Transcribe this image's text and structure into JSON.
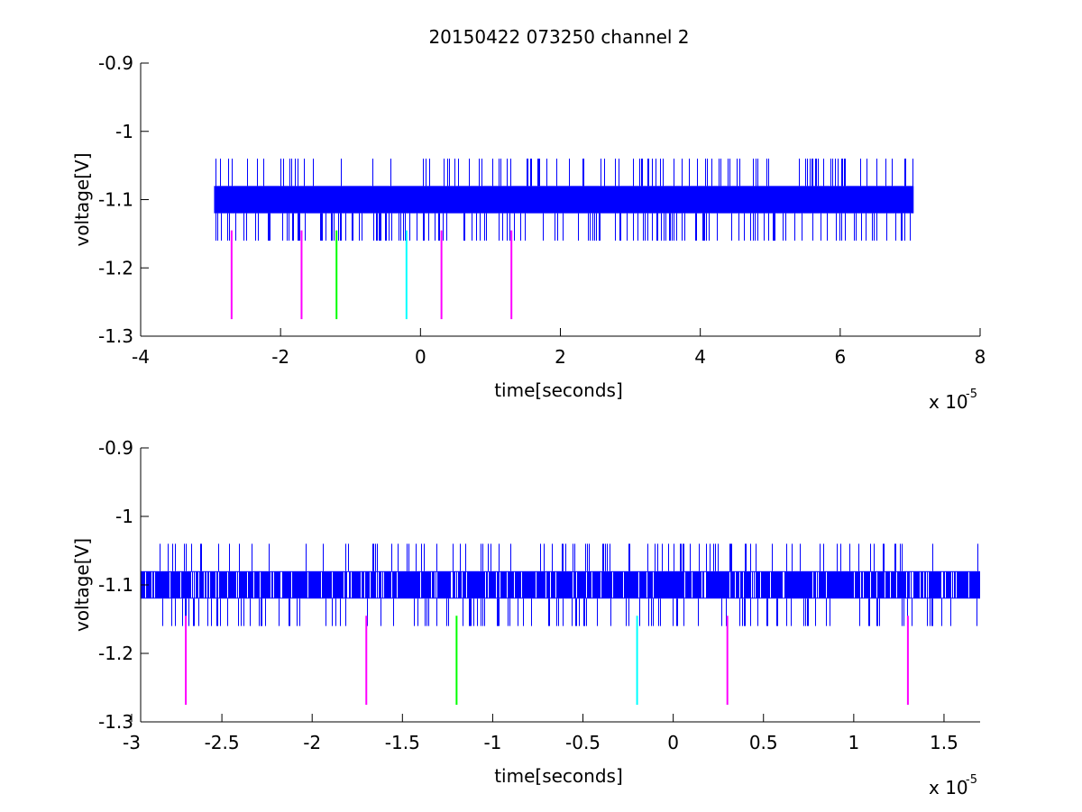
{
  "title": "20150422 073250 channel 2",
  "chart_data": [
    {
      "type": "line",
      "xlabel": "time[seconds]",
      "ylabel": "voltage[V]",
      "x_multiplier": "x 10",
      "x_exponent": "-5",
      "xlim": [
        -4,
        8
      ],
      "ylim": [
        -1.3,
        -0.9
      ],
      "xticks": [
        -4,
        -2,
        0,
        2,
        4,
        6,
        8
      ],
      "xtick_labels": [
        "-4",
        "-2",
        "0",
        "2",
        "4",
        "6",
        "8"
      ],
      "yticks": [
        -1.3,
        -1.2,
        -1.1,
        -1.0,
        -0.9
      ],
      "ytick_labels": [
        "-1.3",
        "-1.2",
        "-1.1",
        "-1",
        "-0.9"
      ],
      "grid": false,
      "signal": {
        "color": "#0000ff",
        "x_start": -2.95,
        "x_end": 7.05,
        "band_low": -1.12,
        "band_high": -1.08,
        "spike_high": -1.04,
        "spike_low": -1.16,
        "high_spike_density": 0.17,
        "low_spike_density": 0.18,
        "gap_density": 0.0
      },
      "markers": [
        {
          "x": -2.7,
          "y_top": -1.145,
          "y_bottom": -1.275,
          "color": "#ff00ff"
        },
        {
          "x": -1.7,
          "y_top": -1.145,
          "y_bottom": -1.275,
          "color": "#ff00ff"
        },
        {
          "x": -1.2,
          "y_top": -1.145,
          "y_bottom": -1.275,
          "color": "#00ff00"
        },
        {
          "x": -0.2,
          "y_top": -1.145,
          "y_bottom": -1.275,
          "color": "#00ffff"
        },
        {
          "x": 0.3,
          "y_top": -1.145,
          "y_bottom": -1.275,
          "color": "#ff00ff"
        },
        {
          "x": 1.3,
          "y_top": -1.145,
          "y_bottom": -1.275,
          "color": "#ff00ff"
        }
      ]
    },
    {
      "type": "line",
      "xlabel": "time[seconds]",
      "ylabel": "voltage[V]",
      "x_multiplier": "x 10",
      "x_exponent": "-5",
      "xlim": [
        -2.95,
        1.7
      ],
      "ylim": [
        -1.3,
        -0.9
      ],
      "xticks": [
        -3,
        -2.5,
        -2,
        -1.5,
        -1,
        -0.5,
        0,
        0.5,
        1,
        1.5
      ],
      "xtick_labels": [
        "-3",
        "-2.5",
        "-2",
        "-1.5",
        "-1",
        "-0.5",
        "0",
        "0.5",
        "1",
        "1.5"
      ],
      "yticks": [
        -1.3,
        -1.2,
        -1.1,
        -1.0,
        -0.9
      ],
      "ytick_labels": [
        "-1.3",
        "-1.2",
        "-1.1",
        "-1",
        "-0.9"
      ],
      "grid": false,
      "signal": {
        "color": "#0000ff",
        "x_start": -2.95,
        "x_end": 1.7,
        "band_low": -1.12,
        "band_high": -1.08,
        "spike_high": -1.04,
        "spike_low": -1.16,
        "high_spike_density": 0.12,
        "low_spike_density": 0.13,
        "gap_density": 0.14
      },
      "markers": [
        {
          "x": -2.7,
          "y_top": -1.145,
          "y_bottom": -1.275,
          "color": "#ff00ff"
        },
        {
          "x": -1.7,
          "y_top": -1.145,
          "y_bottom": -1.275,
          "color": "#ff00ff"
        },
        {
          "x": -1.2,
          "y_top": -1.145,
          "y_bottom": -1.275,
          "color": "#00ff00"
        },
        {
          "x": -0.2,
          "y_top": -1.145,
          "y_bottom": -1.275,
          "color": "#00ffff"
        },
        {
          "x": 0.3,
          "y_top": -1.145,
          "y_bottom": -1.275,
          "color": "#ff00ff"
        },
        {
          "x": 1.3,
          "y_top": -1.145,
          "y_bottom": -1.275,
          "color": "#ff00ff"
        }
      ]
    }
  ]
}
